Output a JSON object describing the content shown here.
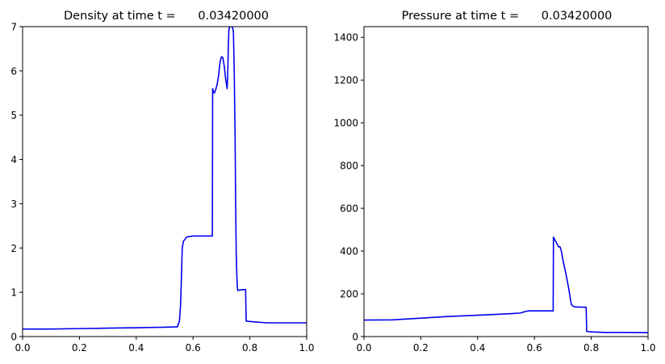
{
  "chart_data": [
    {
      "type": "line",
      "title": "Density at time t =      0.03420000",
      "xlabel": "",
      "ylabel": "",
      "xlim": [
        0,
        1
      ],
      "ylim": [
        0,
        7
      ],
      "xticks": [
        0.0,
        0.2,
        0.4,
        0.6,
        0.8,
        1.0
      ],
      "xtick_labels": [
        "0.0",
        "0.2",
        "0.4",
        "0.6",
        "0.8",
        "1.0"
      ],
      "yticks": [
        0,
        1,
        2,
        3,
        4,
        5,
        6,
        7
      ],
      "ytick_labels": [
        "0",
        "1",
        "2",
        "3",
        "4",
        "5",
        "6",
        "7"
      ],
      "grid": false,
      "color": "#0000ee",
      "x": [
        0.0,
        0.1,
        0.2,
        0.3,
        0.4,
        0.5,
        0.545,
        0.552,
        0.556,
        0.559,
        0.562,
        0.566,
        0.578,
        0.6,
        0.64,
        0.668,
        0.669,
        0.671,
        0.675,
        0.68,
        0.685,
        0.69,
        0.695,
        0.7,
        0.705,
        0.71,
        0.715,
        0.72,
        0.722,
        0.724,
        0.726,
        0.728,
        0.732,
        0.738,
        0.742,
        0.745,
        0.748,
        0.75,
        0.752,
        0.754,
        0.756,
        0.758,
        0.765,
        0.775,
        0.785,
        0.787,
        0.8,
        0.82,
        0.86,
        0.9,
        1.0
      ],
      "y": [
        0.17,
        0.17,
        0.18,
        0.19,
        0.2,
        0.21,
        0.22,
        0.35,
        0.7,
        1.3,
        2.0,
        2.15,
        2.25,
        2.27,
        2.27,
        2.27,
        5.6,
        5.55,
        5.5,
        5.58,
        5.7,
        5.9,
        6.2,
        6.32,
        6.3,
        6.1,
        5.8,
        5.6,
        5.9,
        6.5,
        6.9,
        7.0,
        7.0,
        7.0,
        6.9,
        6.0,
        4.5,
        3.0,
        1.9,
        1.4,
        1.1,
        1.04,
        1.05,
        1.06,
        1.06,
        0.35,
        0.34,
        0.33,
        0.31,
        0.31,
        0.31
      ]
    },
    {
      "type": "line",
      "title": "Pressure at time t =      0.03420000",
      "xlabel": "",
      "ylabel": "",
      "xlim": [
        0,
        1
      ],
      "ylim": [
        0,
        1450
      ],
      "xticks": [
        0.0,
        0.2,
        0.4,
        0.6,
        0.8,
        1.0
      ],
      "xtick_labels": [
        "0.0",
        "0.2",
        "0.4",
        "0.6",
        "0.8",
        "1.0"
      ],
      "yticks": [
        0,
        200,
        400,
        600,
        800,
        1000,
        1200,
        1400
      ],
      "ytick_labels": [
        "0",
        "200",
        "400",
        "600",
        "800",
        "1000",
        "1200",
        "1400"
      ],
      "grid": false,
      "color": "#0000ee",
      "x": [
        0.0,
        0.1,
        0.2,
        0.3,
        0.4,
        0.5,
        0.55,
        0.57,
        0.58,
        0.62,
        0.666,
        0.667,
        0.675,
        0.685,
        0.69,
        0.695,
        0.7,
        0.71,
        0.72,
        0.73,
        0.735,
        0.745,
        0.76,
        0.782,
        0.784,
        0.8,
        0.85,
        0.9,
        1.0
      ],
      "y": [
        77,
        78,
        86,
        94,
        100,
        106,
        110,
        118,
        120,
        120,
        120,
        465,
        445,
        420,
        420,
        400,
        360,
        300,
        230,
        150,
        143,
        138,
        138,
        137,
        24,
        22,
        19,
        19,
        18
      ]
    }
  ]
}
